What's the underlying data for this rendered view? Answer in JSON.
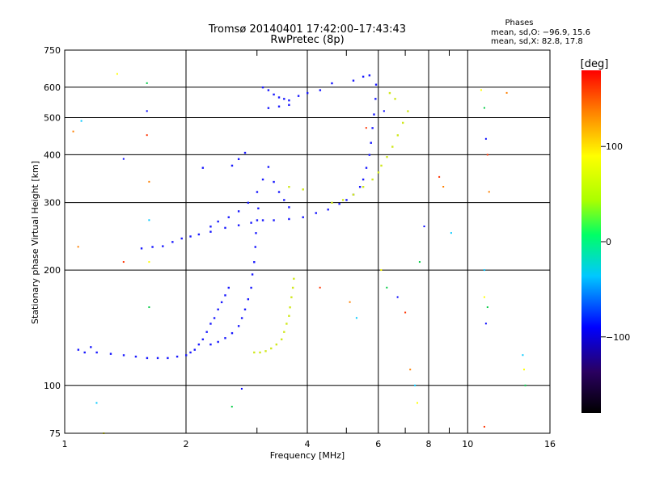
{
  "chart_data": {
    "type": "scatter",
    "title": "Tromsø 20140401 17:42:00–17:43:43",
    "subtitle": "RwPretec (8p)",
    "xlabel": "Frequency [MHz]",
    "ylabel": "Stationary phase Virtual Height [km]",
    "x_scale": "log",
    "y_scale": "log",
    "xlim": [
      1,
      16
    ],
    "ylim": [
      75,
      750
    ],
    "x_ticks": [
      1,
      2,
      4,
      6,
      8,
      10,
      16
    ],
    "x_tick_labels": [
      "1",
      "2",
      "4",
      "6",
      "8",
      "10",
      "16"
    ],
    "x_minor_ticks": [
      3,
      5,
      7,
      9
    ],
    "y_ticks": [
      75,
      100,
      200,
      300,
      400,
      500,
      600,
      750
    ],
    "y_tick_labels": [
      "75",
      "100",
      "200",
      "300",
      "400",
      "500",
      "600",
      "750"
    ],
    "grid": true,
    "phases_box": {
      "heading": "Phases",
      "line1": "mean, sd,O: −96.9, 15.6",
      "line2": "mean, sd,X:  82.8, 17.8"
    },
    "colorbar": {
      "label": "[deg]",
      "range": [
        -180,
        180
      ],
      "ticks": [
        100,
        0,
        -100
      ],
      "tick_labels": [
        "100",
        "0",
        "−100"
      ]
    },
    "series": [
      {
        "mode": "O",
        "phase_deg": -100,
        "points": [
          [
            1.08,
            124
          ],
          [
            1.12,
            122
          ],
          [
            1.16,
            126
          ],
          [
            1.2,
            122
          ],
          [
            1.3,
            121
          ],
          [
            1.4,
            120
          ],
          [
            1.5,
            119
          ],
          [
            1.6,
            118
          ],
          [
            1.7,
            118
          ],
          [
            1.8,
            118
          ],
          [
            1.9,
            119
          ],
          [
            2.0,
            120
          ],
          [
            2.05,
            122
          ],
          [
            2.1,
            124
          ],
          [
            2.15,
            128
          ],
          [
            2.2,
            132
          ],
          [
            2.25,
            138
          ],
          [
            2.3,
            145
          ],
          [
            2.35,
            150
          ],
          [
            2.4,
            158
          ],
          [
            2.45,
            165
          ],
          [
            2.5,
            172
          ],
          [
            2.55,
            180
          ],
          [
            2.3,
            128
          ],
          [
            2.4,
            130
          ],
          [
            2.5,
            133
          ],
          [
            2.6,
            137
          ],
          [
            2.7,
            143
          ],
          [
            2.75,
            150
          ],
          [
            2.8,
            158
          ],
          [
            2.85,
            168
          ],
          [
            2.9,
            180
          ],
          [
            2.92,
            195
          ],
          [
            2.95,
            210
          ],
          [
            2.97,
            230
          ],
          [
            2.98,
            250
          ],
          [
            3.0,
            270
          ],
          [
            3.02,
            290
          ],
          [
            1.55,
            228
          ],
          [
            1.65,
            230
          ],
          [
            1.75,
            231
          ],
          [
            1.85,
            237
          ],
          [
            1.95,
            242
          ],
          [
            2.05,
            245
          ],
          [
            2.15,
            248
          ],
          [
            2.3,
            252
          ],
          [
            2.5,
            258
          ],
          [
            2.7,
            262
          ],
          [
            2.9,
            266
          ],
          [
            3.1,
            270
          ],
          [
            3.3,
            270
          ],
          [
            3.6,
            272
          ],
          [
            3.9,
            275
          ],
          [
            4.2,
            282
          ],
          [
            4.5,
            288
          ],
          [
            4.8,
            298
          ],
          [
            5.0,
            305
          ],
          [
            5.2,
            315
          ],
          [
            5.4,
            330
          ],
          [
            5.5,
            345
          ],
          [
            5.6,
            370
          ],
          [
            5.7,
            400
          ],
          [
            5.75,
            430
          ],
          [
            5.8,
            470
          ],
          [
            5.85,
            510
          ],
          [
            5.9,
            560
          ],
          [
            5.92,
            610
          ],
          [
            3.1,
            600
          ],
          [
            3.2,
            590
          ],
          [
            3.3,
            575
          ],
          [
            3.4,
            565
          ],
          [
            3.5,
            560
          ],
          [
            3.6,
            555
          ],
          [
            3.2,
            530
          ],
          [
            3.4,
            535
          ],
          [
            3.6,
            540
          ],
          [
            3.8,
            570
          ],
          [
            4.0,
            580
          ],
          [
            4.3,
            590
          ],
          [
            4.6,
            615
          ],
          [
            5.2,
            625
          ],
          [
            5.5,
            640
          ],
          [
            5.7,
            645
          ],
          [
            2.3,
            260
          ],
          [
            2.4,
            268
          ],
          [
            2.55,
            275
          ],
          [
            2.7,
            285
          ],
          [
            2.85,
            300
          ],
          [
            3.0,
            320
          ],
          [
            3.1,
            345
          ],
          [
            3.2,
            372
          ],
          [
            3.3,
            340
          ],
          [
            3.4,
            320
          ],
          [
            3.5,
            305
          ],
          [
            3.6,
            292
          ],
          [
            2.6,
            375
          ],
          [
            2.7,
            390
          ],
          [
            2.8,
            405
          ],
          [
            2.2,
            370
          ]
        ]
      },
      {
        "mode": "X",
        "phase_deg": 90,
        "points": [
          [
            2.95,
            122
          ],
          [
            3.05,
            122
          ],
          [
            3.15,
            123
          ],
          [
            3.25,
            125
          ],
          [
            3.35,
            128
          ],
          [
            3.45,
            132
          ],
          [
            3.5,
            138
          ],
          [
            3.55,
            145
          ],
          [
            3.6,
            152
          ],
          [
            3.62,
            160
          ],
          [
            3.65,
            170
          ],
          [
            3.68,
            180
          ],
          [
            3.7,
            190
          ],
          [
            4.6,
            300
          ],
          [
            4.9,
            305
          ],
          [
            5.2,
            315
          ],
          [
            5.5,
            330
          ],
          [
            5.8,
            345
          ],
          [
            6.0,
            360
          ],
          [
            6.1,
            375
          ],
          [
            6.3,
            395
          ],
          [
            6.5,
            420
          ],
          [
            6.7,
            450
          ],
          [
            6.9,
            485
          ],
          [
            7.1,
            520
          ],
          [
            6.4,
            580
          ],
          [
            6.6,
            560
          ],
          [
            3.6,
            330
          ],
          [
            3.9,
            325
          ]
        ]
      }
    ],
    "scattered_noise": [
      [
        1.05,
        460
      ],
      [
        1.1,
        490
      ],
      [
        1.35,
        650
      ],
      [
        1.6,
        615
      ],
      [
        1.6,
        520
      ],
      [
        1.6,
        450
      ],
      [
        1.62,
        340
      ],
      [
        1.62,
        270
      ],
      [
        1.62,
        210
      ],
      [
        1.62,
        160
      ],
      [
        1.4,
        390
      ],
      [
        1.4,
        210
      ],
      [
        1.08,
        230
      ],
      [
        1.2,
        90
      ],
      [
        1.25,
        75
      ],
      [
        2.6,
        88
      ],
      [
        2.75,
        98
      ],
      [
        4.3,
        180
      ],
      [
        5.1,
        165
      ],
      [
        5.3,
        150
      ],
      [
        6.1,
        200
      ],
      [
        6.3,
        180
      ],
      [
        6.7,
        170
      ],
      [
        7.0,
        155
      ],
      [
        7.2,
        110
      ],
      [
        7.4,
        100
      ],
      [
        7.5,
        90
      ],
      [
        7.6,
        210
      ],
      [
        7.8,
        260
      ],
      [
        8.5,
        350
      ],
      [
        8.7,
        330
      ],
      [
        9.1,
        250
      ],
      [
        10.8,
        590
      ],
      [
        11.0,
        530
      ],
      [
        11.1,
        440
      ],
      [
        11.2,
        400
      ],
      [
        11.3,
        320
      ],
      [
        11.0,
        200
      ],
      [
        11.0,
        170
      ],
      [
        11.2,
        160
      ],
      [
        11.1,
        145
      ],
      [
        11.0,
        78
      ],
      [
        12.5,
        580
      ],
      [
        13.7,
        120
      ],
      [
        13.8,
        110
      ],
      [
        13.9,
        100
      ],
      [
        6.2,
        520
      ],
      [
        5.6,
        470
      ]
    ]
  }
}
